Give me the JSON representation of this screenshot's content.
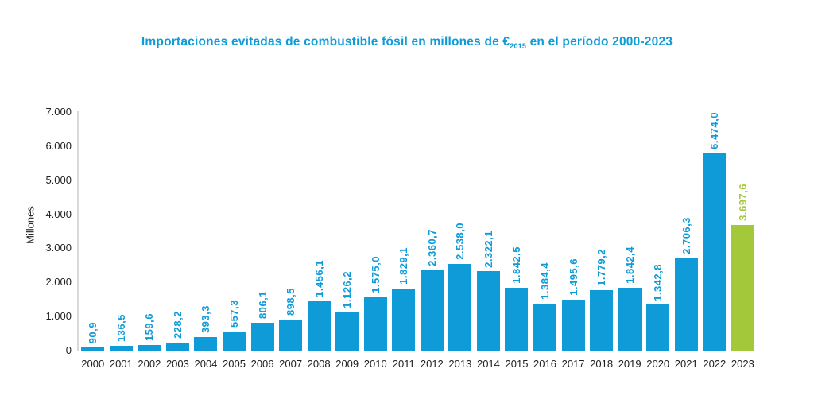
{
  "title": {
    "prefix": "Importaciones evitadas de combustible fósil en millones de €",
    "subscript": "2015",
    "suffix": " en el período 2000-2023"
  },
  "colors": {
    "accent_blue": "#0F9BD8",
    "highlight_green": "#A3C93A",
    "axis_text": "#222222",
    "axis_line": "#D8D8D8"
  },
  "chart_data": {
    "type": "bar",
    "title": "Importaciones evitadas de combustible fósil en millones de €2015 en el período 2000-2023",
    "xlabel": "",
    "ylabel": "Millones",
    "ylim": [
      0,
      7000
    ],
    "grid": false,
    "legend": false,
    "y_ticks": [
      {
        "label": "7.000",
        "value": 7000
      },
      {
        "label": "6.000",
        "value": 6000
      },
      {
        "label": "5.000",
        "value": 5000
      },
      {
        "label": "4.000",
        "value": 4000
      },
      {
        "label": "3.000",
        "value": 3000
      },
      {
        "label": "2.000",
        "value": 2000
      },
      {
        "label": "1.000",
        "value": 1000
      },
      {
        "label": "0",
        "value": 0
      }
    ],
    "categories": [
      "2000",
      "2001",
      "2002",
      "2003",
      "2004",
      "2005",
      "2006",
      "2007",
      "2008",
      "2009",
      "2010",
      "2011",
      "2012",
      "2013",
      "2014",
      "2015",
      "2016",
      "2017",
      "2018",
      "2019",
      "2020",
      "2021",
      "2022",
      "2023"
    ],
    "values": [
      90.9,
      136.5,
      159.6,
      228.2,
      393.3,
      557.3,
      806.1,
      898.5,
      1456.1,
      1126.2,
      1575.0,
      1829.1,
      2360.7,
      2538.0,
      2322.1,
      1842.5,
      1384.4,
      1495.6,
      1779.2,
      1842.4,
      1342.8,
      2706.3,
      6474.0,
      3697.6
    ],
    "value_labels": [
      "90,9",
      "136,5",
      "159,6",
      "228,2",
      "393,3",
      "557,3",
      "806,1",
      "898,5",
      "1.456,1",
      "1.126,2",
      "1.575,0",
      "1.829,1",
      "2.360,7",
      "2.538,0",
      "2.322,1",
      "1.842,5",
      "1.384,4",
      "1.495,6",
      "1.779,2",
      "1.842,4",
      "1.342,8",
      "2.706,3",
      "6.474,0",
      "3.697,6"
    ],
    "bar_color": "#0F9BD8",
    "highlight_color": "#A3C93A",
    "highlight_index": 23
  }
}
